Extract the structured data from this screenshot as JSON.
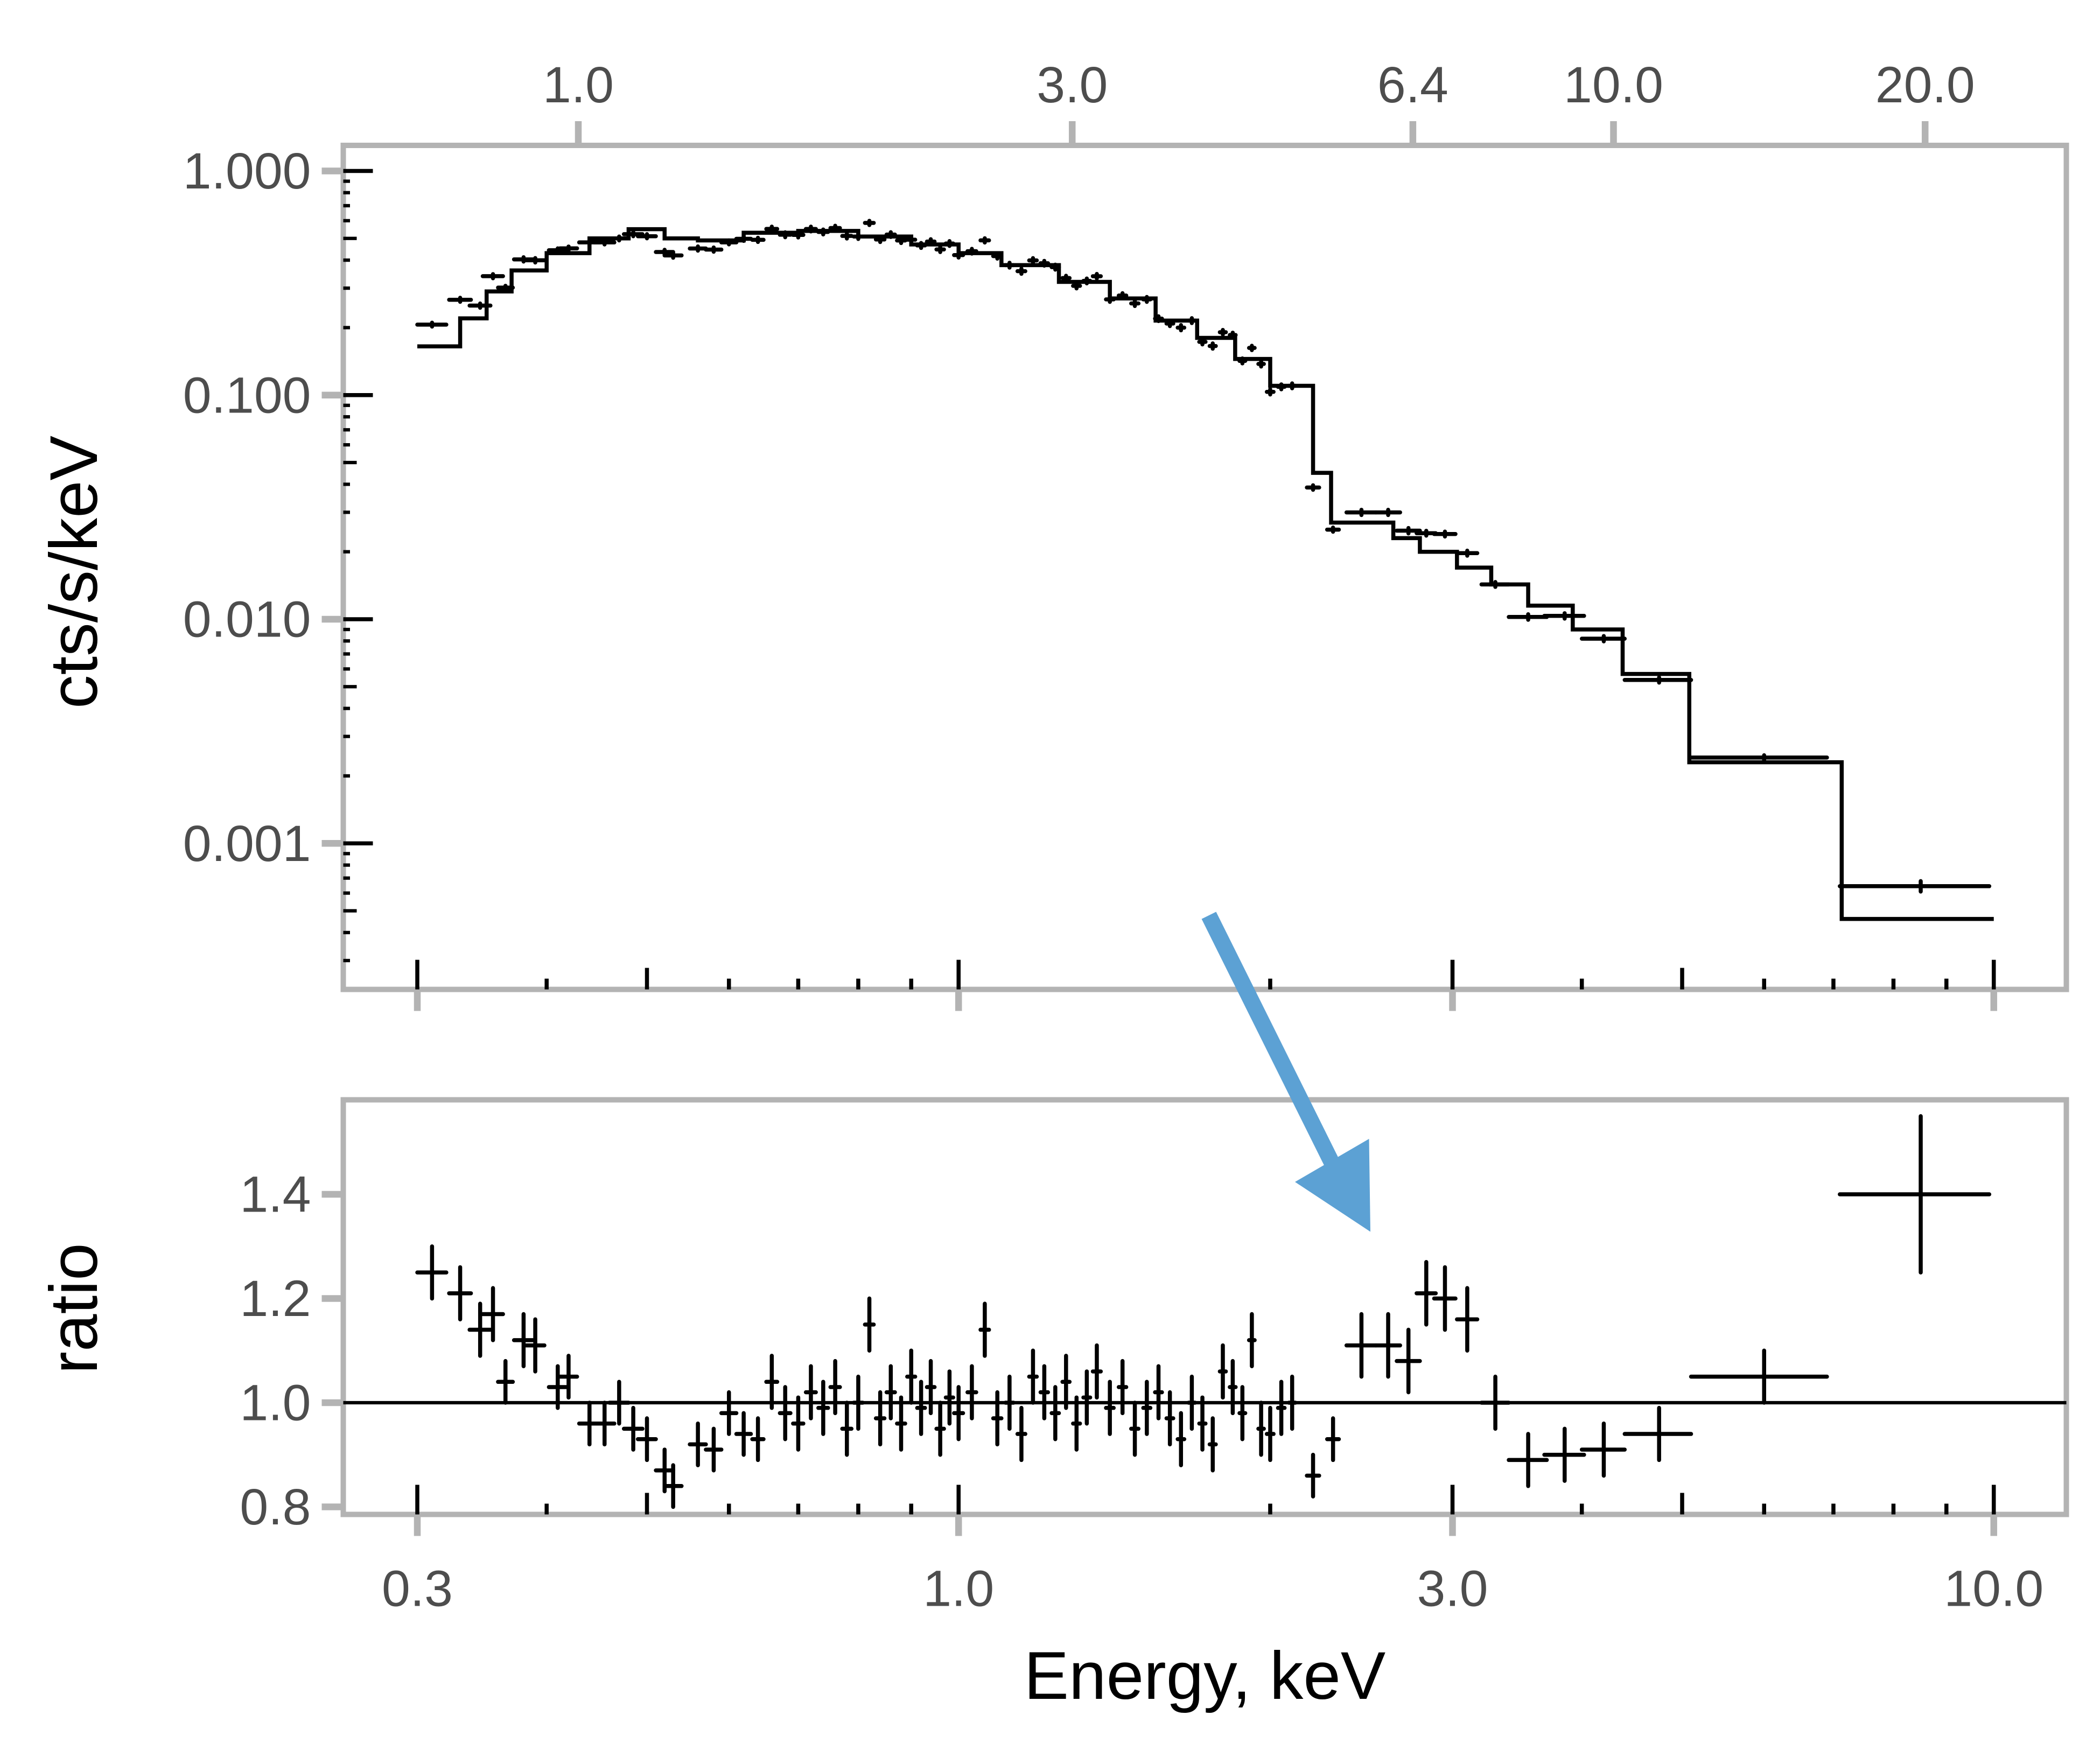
{
  "colors": {
    "axis": "#b3b3b3",
    "data": "#000000",
    "arrow": "#5ca1d4",
    "tick_text": "#4d4d4d"
  },
  "chart_data": [
    {
      "type": "line",
      "panel": "spectrum",
      "ylabel": "cts/s/keV",
      "xscale": "log",
      "yscale": "log",
      "xlim": [
        0.28,
        11.0
      ],
      "ylim": [
        0.00022,
        1.3
      ],
      "y_ticks": [
        {
          "v": 1.0,
          "label": "1.000"
        },
        {
          "v": 0.1,
          "label": "0.100"
        },
        {
          "v": 0.01,
          "label": "0.010"
        },
        {
          "v": 0.001,
          "label": "0.001"
        }
      ],
      "top_axis_scale": 2.33,
      "top_ticks": [
        {
          "v": 1.0,
          "label": "1.0"
        },
        {
          "v": 3.0,
          "label": "3.0"
        },
        {
          "v": 6.4,
          "label": "6.4"
        },
        {
          "v": 10.0,
          "label": "10.0"
        },
        {
          "v": 20.0,
          "label": "20.0"
        }
      ],
      "model_bins": [
        [
          0.3,
          0.33,
          0.165
        ],
        [
          0.33,
          0.35,
          0.22
        ],
        [
          0.35,
          0.37,
          0.29
        ],
        [
          0.37,
          0.4,
          0.36
        ],
        [
          0.4,
          0.44,
          0.43
        ],
        [
          0.44,
          0.48,
          0.5
        ],
        [
          0.48,
          0.52,
          0.55
        ],
        [
          0.52,
          0.56,
          0.5
        ],
        [
          0.56,
          0.62,
          0.49
        ],
        [
          0.62,
          0.7,
          0.53
        ],
        [
          0.7,
          0.8,
          0.54
        ],
        [
          0.8,
          0.9,
          0.51
        ],
        [
          0.9,
          1.0,
          0.47
        ],
        [
          1.0,
          1.1,
          0.43
        ],
        [
          1.1,
          1.25,
          0.38
        ],
        [
          1.25,
          1.4,
          0.32
        ],
        [
          1.4,
          1.55,
          0.27
        ],
        [
          1.55,
          1.7,
          0.215
        ],
        [
          1.7,
          1.85,
          0.18
        ],
        [
          1.85,
          2.0,
          0.145
        ],
        [
          2.0,
          2.2,
          0.11
        ],
        [
          2.2,
          2.29,
          0.045
        ],
        [
          2.29,
          2.63,
          0.027
        ],
        [
          2.63,
          2.79,
          0.023
        ],
        [
          2.79,
          3.03,
          0.02
        ],
        [
          3.03,
          3.27,
          0.017
        ],
        [
          3.27,
          3.55,
          0.0143
        ],
        [
          3.55,
          3.92,
          0.0115
        ],
        [
          3.92,
          4.38,
          0.009
        ],
        [
          4.38,
          5.08,
          0.0057
        ],
        [
          5.08,
          7.13,
          0.0023
        ],
        [
          7.13,
          10.0,
          0.00046
        ]
      ]
    },
    {
      "type": "scatter",
      "panel": "ratio",
      "xlabel": "Energy, keV",
      "ylabel": "ratio",
      "xscale": "log",
      "xlim": [
        0.28,
        11.0
      ],
      "ylim": [
        0.786,
        1.58
      ],
      "reference_line": 1.0,
      "x_ticks": [
        {
          "v": 0.3,
          "label": "0.3"
        },
        {
          "v": 1.0,
          "label": "1.0"
        },
        {
          "v": 3.0,
          "label": "3.0"
        },
        {
          "v": 10.0,
          "label": "10.0"
        }
      ],
      "y_ticks": [
        {
          "v": 1.4,
          "label": "1.4"
        },
        {
          "v": 1.2,
          "label": "1.2"
        },
        {
          "v": 1.0,
          "label": "1.0"
        },
        {
          "v": 0.8,
          "label": "0.8"
        }
      ],
      "points": [
        [
          0.31,
          0.01,
          1.25,
          0.05
        ],
        [
          0.33,
          0.008,
          1.21,
          0.05
        ],
        [
          0.345,
          0.008,
          1.14,
          0.05
        ],
        [
          0.355,
          0.008,
          1.17,
          0.05
        ],
        [
          0.365,
          0.006,
          1.04,
          0.04
        ],
        [
          0.38,
          0.008,
          1.12,
          0.05
        ],
        [
          0.39,
          0.008,
          1.11,
          0.05
        ],
        [
          0.41,
          0.008,
          1.03,
          0.04
        ],
        [
          0.42,
          0.008,
          1.05,
          0.04
        ],
        [
          0.44,
          0.01,
          0.96,
          0.04
        ],
        [
          0.455,
          0.01,
          0.96,
          0.04
        ],
        [
          0.47,
          0.01,
          1.0,
          0.04
        ],
        [
          0.485,
          0.01,
          0.95,
          0.04
        ],
        [
          0.5,
          0.01,
          0.93,
          0.04
        ],
        [
          0.52,
          0.01,
          0.87,
          0.04
        ],
        [
          0.53,
          0.01,
          0.84,
          0.04
        ],
        [
          0.56,
          0.01,
          0.92,
          0.04
        ],
        [
          0.58,
          0.01,
          0.91,
          0.04
        ],
        [
          0.6,
          0.01,
          0.98,
          0.04
        ],
        [
          0.62,
          0.01,
          0.94,
          0.04
        ],
        [
          0.64,
          0.008,
          0.93,
          0.04
        ],
        [
          0.66,
          0.008,
          1.04,
          0.05
        ],
        [
          0.68,
          0.008,
          0.98,
          0.05
        ],
        [
          0.7,
          0.008,
          0.96,
          0.05
        ],
        [
          0.72,
          0.008,
          1.02,
          0.05
        ],
        [
          0.74,
          0.008,
          0.99,
          0.05
        ],
        [
          0.76,
          0.008,
          1.03,
          0.05
        ],
        [
          0.78,
          0.008,
          0.95,
          0.05
        ],
        [
          0.8,
          0.008,
          1.0,
          0.05
        ],
        [
          0.82,
          0.008,
          1.15,
          0.05
        ],
        [
          0.84,
          0.008,
          0.97,
          0.05
        ],
        [
          0.86,
          0.008,
          1.02,
          0.05
        ],
        [
          0.88,
          0.008,
          0.96,
          0.05
        ],
        [
          0.9,
          0.008,
          1.05,
          0.05
        ],
        [
          0.92,
          0.008,
          0.99,
          0.05
        ],
        [
          0.94,
          0.008,
          1.03,
          0.05
        ],
        [
          0.96,
          0.008,
          0.95,
          0.05
        ],
        [
          0.98,
          0.008,
          1.01,
          0.05
        ],
        [
          1.0,
          0.01,
          0.98,
          0.05
        ],
        [
          1.03,
          0.01,
          1.02,
          0.05
        ],
        [
          1.06,
          0.01,
          1.14,
          0.05
        ],
        [
          1.09,
          0.01,
          0.97,
          0.05
        ],
        [
          1.12,
          0.01,
          1.0,
          0.05
        ],
        [
          1.15,
          0.01,
          0.94,
          0.05
        ],
        [
          1.18,
          0.01,
          1.05,
          0.05
        ],
        [
          1.21,
          0.01,
          1.02,
          0.05
        ],
        [
          1.24,
          0.01,
          0.98,
          0.05
        ],
        [
          1.27,
          0.01,
          1.04,
          0.05
        ],
        [
          1.3,
          0.01,
          0.96,
          0.05
        ],
        [
          1.33,
          0.01,
          1.01,
          0.05
        ],
        [
          1.36,
          0.012,
          1.06,
          0.05
        ],
        [
          1.4,
          0.012,
          0.99,
          0.05
        ],
        [
          1.44,
          0.012,
          1.03,
          0.05
        ],
        [
          1.48,
          0.012,
          0.95,
          0.05
        ],
        [
          1.52,
          0.012,
          0.99,
          0.05
        ],
        [
          1.56,
          0.012,
          1.02,
          0.05
        ],
        [
          1.6,
          0.012,
          0.97,
          0.05
        ],
        [
          1.64,
          0.012,
          0.93,
          0.05
        ],
        [
          1.68,
          0.012,
          1.0,
          0.05
        ],
        [
          1.72,
          0.012,
          0.96,
          0.05
        ],
        [
          1.76,
          0.012,
          0.92,
          0.05
        ],
        [
          1.8,
          0.012,
          1.06,
          0.05
        ],
        [
          1.84,
          0.012,
          1.03,
          0.05
        ],
        [
          1.88,
          0.012,
          0.98,
          0.05
        ],
        [
          1.92,
          0.012,
          1.12,
          0.05
        ],
        [
          1.96,
          0.012,
          0.95,
          0.05
        ],
        [
          2.0,
          0.015,
          0.94,
          0.05
        ],
        [
          2.05,
          0.015,
          0.99,
          0.05
        ],
        [
          2.1,
          0.015,
          1.0,
          0.05
        ],
        [
          2.2,
          0.03,
          0.86,
          0.04
        ],
        [
          2.3,
          0.03,
          0.93,
          0.04
        ],
        [
          2.45,
          0.08,
          1.11,
          0.06
        ],
        [
          2.6,
          0.07,
          1.11,
          0.06
        ],
        [
          2.72,
          0.07,
          1.08,
          0.06
        ],
        [
          2.83,
          0.06,
          1.21,
          0.06
        ],
        [
          2.95,
          0.07,
          1.2,
          0.06
        ],
        [
          3.1,
          0.07,
          1.16,
          0.06
        ],
        [
          3.3,
          0.1,
          1.0,
          0.05
        ],
        [
          3.55,
          0.15,
          0.89,
          0.05
        ],
        [
          3.85,
          0.17,
          0.9,
          0.05
        ],
        [
          4.2,
          0.2,
          0.91,
          0.05
        ],
        [
          4.75,
          0.35,
          0.94,
          0.05
        ],
        [
          6.0,
          0.9,
          1.05,
          0.05
        ],
        [
          8.5,
          1.4,
          1.4,
          0.15
        ]
      ]
    }
  ]
}
